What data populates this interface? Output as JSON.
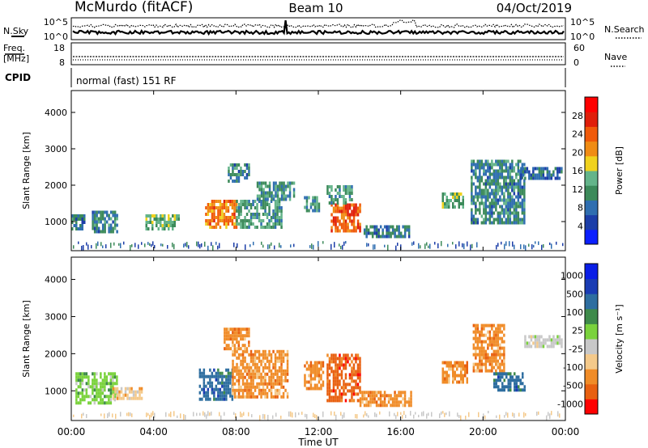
{
  "header": {
    "station": "McMurdo (fitACF)",
    "beam": "Beam 10",
    "date": "04/Oct/2019"
  },
  "top_panels": {
    "nsky_label": "N.Sky",
    "nsky_ticks": [
      "10^5",
      "10^0"
    ],
    "nsearch_label": "N.Search",
    "nsearch_ticks": [
      "10^5",
      "10^0"
    ],
    "freq_label_1": "Freq.",
    "freq_label_2": "[MHz]",
    "freq_ticks": [
      "18",
      "8"
    ],
    "nave_label": "Nave",
    "nave_ticks": [
      "60",
      "0"
    ],
    "cpid_label": "CPID",
    "cpid_text": "normal (fast) 151 RF"
  },
  "colors": {
    "power_scale": [
      "#0b1fff",
      "#1c3ea8",
      "#2f6eb0",
      "#3c8a5a",
      "#64b48a",
      "#f0d21e",
      "#f08c14",
      "#f05a0a",
      "#e01e0a",
      "#ff0000"
    ],
    "velocity_scale": [
      "#ff0000",
      "#e86010",
      "#f08c28",
      "#f4c98a",
      "#c8c8c8",
      "#7ad23c",
      "#3e8a4a",
      "#2e6ea0",
      "#1a3cb4",
      "#0a1ee6"
    ]
  },
  "chart_data": [
    {
      "type": "heatmap",
      "name": "power-panel",
      "ylabel": "Slant Range [km]",
      "ylim": [
        200,
        4600
      ],
      "y_ticks": [
        "4000",
        "3000",
        "2000",
        "1000"
      ],
      "y_tick_values": [
        4000,
        3000,
        2000,
        1000
      ],
      "x_ticks": [
        "00:00",
        "04:00",
        "08:00",
        "12:00",
        "16:00",
        "20:00",
        "00:00"
      ],
      "x_tick_values": [
        0,
        4,
        8,
        12,
        16,
        20,
        24
      ],
      "xlim": [
        0,
        24
      ],
      "colorbar_label": "Power [dB]",
      "colorbar_ticks": [
        "28",
        "24",
        "20",
        "16",
        "12",
        "8",
        "4"
      ],
      "colorbar_tick_values": [
        28,
        24,
        20,
        16,
        12,
        8,
        4
      ],
      "colorbar_range": [
        0,
        32
      ],
      "regions": [
        {
          "t": [
            0.0,
            0.6
          ],
          "r": [
            800,
            1200
          ],
          "v": 9
        },
        {
          "t": [
            1.0,
            2.2
          ],
          "r": [
            700,
            1300
          ],
          "v": 10
        },
        {
          "t": [
            3.6,
            5.2
          ],
          "r": [
            800,
            1200
          ],
          "v": 14
        },
        {
          "t": [
            6.5,
            8.0
          ],
          "r": [
            800,
            1600
          ],
          "v": 22
        },
        {
          "t": [
            8.0,
            10.2
          ],
          "r": [
            850,
            1600
          ],
          "v": 12
        },
        {
          "t": [
            9.0,
            10.8
          ],
          "r": [
            1600,
            2100
          ],
          "v": 11
        },
        {
          "t": [
            7.6,
            8.6
          ],
          "r": [
            2100,
            2600
          ],
          "v": 10
        },
        {
          "t": [
            12.6,
            14.0
          ],
          "r": [
            700,
            1500
          ],
          "v": 24
        },
        {
          "t": [
            12.4,
            13.6
          ],
          "r": [
            1500,
            2000
          ],
          "v": 12
        },
        {
          "t": [
            11.3,
            12.0
          ],
          "r": [
            1300,
            1700
          ],
          "v": 11
        },
        {
          "t": [
            14.2,
            16.4
          ],
          "r": [
            600,
            900
          ],
          "v": 9
        },
        {
          "t": [
            18.0,
            19.0
          ],
          "r": [
            1400,
            1800
          ],
          "v": 14
        },
        {
          "t": [
            19.4,
            22.0
          ],
          "r": [
            1000,
            2700
          ],
          "v": 10
        },
        {
          "t": [
            21.8,
            23.8
          ],
          "r": [
            2200,
            2500
          ],
          "v": 8
        }
      ]
    },
    {
      "type": "heatmap",
      "name": "velocity-panel",
      "ylabel": "Slant Range [km]",
      "ylim": [
        200,
        4600
      ],
      "y_ticks": [
        "4000",
        "3000",
        "2000",
        "1000"
      ],
      "y_tick_values": [
        4000,
        3000,
        2000,
        1000
      ],
      "x_ticks": [
        "00:00",
        "04:00",
        "08:00",
        "12:00",
        "16:00",
        "20:00",
        "00:00"
      ],
      "x_tick_values": [
        0,
        4,
        8,
        12,
        16,
        20,
        24
      ],
      "xlim": [
        0,
        24
      ],
      "xlabel": "Time UT",
      "colorbar_label": "Velocity [m s⁻¹]",
      "colorbar_ticks": [
        "1000",
        "500",
        "100",
        "25",
        "-25",
        "-100",
        "-500",
        "-1000"
      ],
      "regions": [
        {
          "t": [
            0.2,
            2.2
          ],
          "r": [
            700,
            1500
          ],
          "v": "100"
        },
        {
          "t": [
            2.0,
            3.4
          ],
          "r": [
            800,
            1100
          ],
          "v": "-25"
        },
        {
          "t": [
            6.2,
            7.8
          ],
          "r": [
            800,
            1600
          ],
          "v": "500"
        },
        {
          "t": [
            7.8,
            10.5
          ],
          "r": [
            800,
            2100
          ],
          "v": "-100"
        },
        {
          "t": [
            7.4,
            8.6
          ],
          "r": [
            2100,
            2700
          ],
          "v": "-100"
        },
        {
          "t": [
            11.3,
            12.2
          ],
          "r": [
            1100,
            1800
          ],
          "v": "-100"
        },
        {
          "t": [
            12.4,
            14.0
          ],
          "r": [
            700,
            2000
          ],
          "v": "-500"
        },
        {
          "t": [
            14.0,
            16.5
          ],
          "r": [
            600,
            1000
          ],
          "v": "-100"
        },
        {
          "t": [
            18.0,
            19.2
          ],
          "r": [
            1200,
            1800
          ],
          "v": "-100"
        },
        {
          "t": [
            19.5,
            21.0
          ],
          "r": [
            1500,
            2800
          ],
          "v": "-100"
        },
        {
          "t": [
            20.5,
            22.0
          ],
          "r": [
            1000,
            1500
          ],
          "v": "500"
        },
        {
          "t": [
            22.0,
            23.8
          ],
          "r": [
            2200,
            2500
          ],
          "v": "25"
        }
      ]
    }
  ]
}
